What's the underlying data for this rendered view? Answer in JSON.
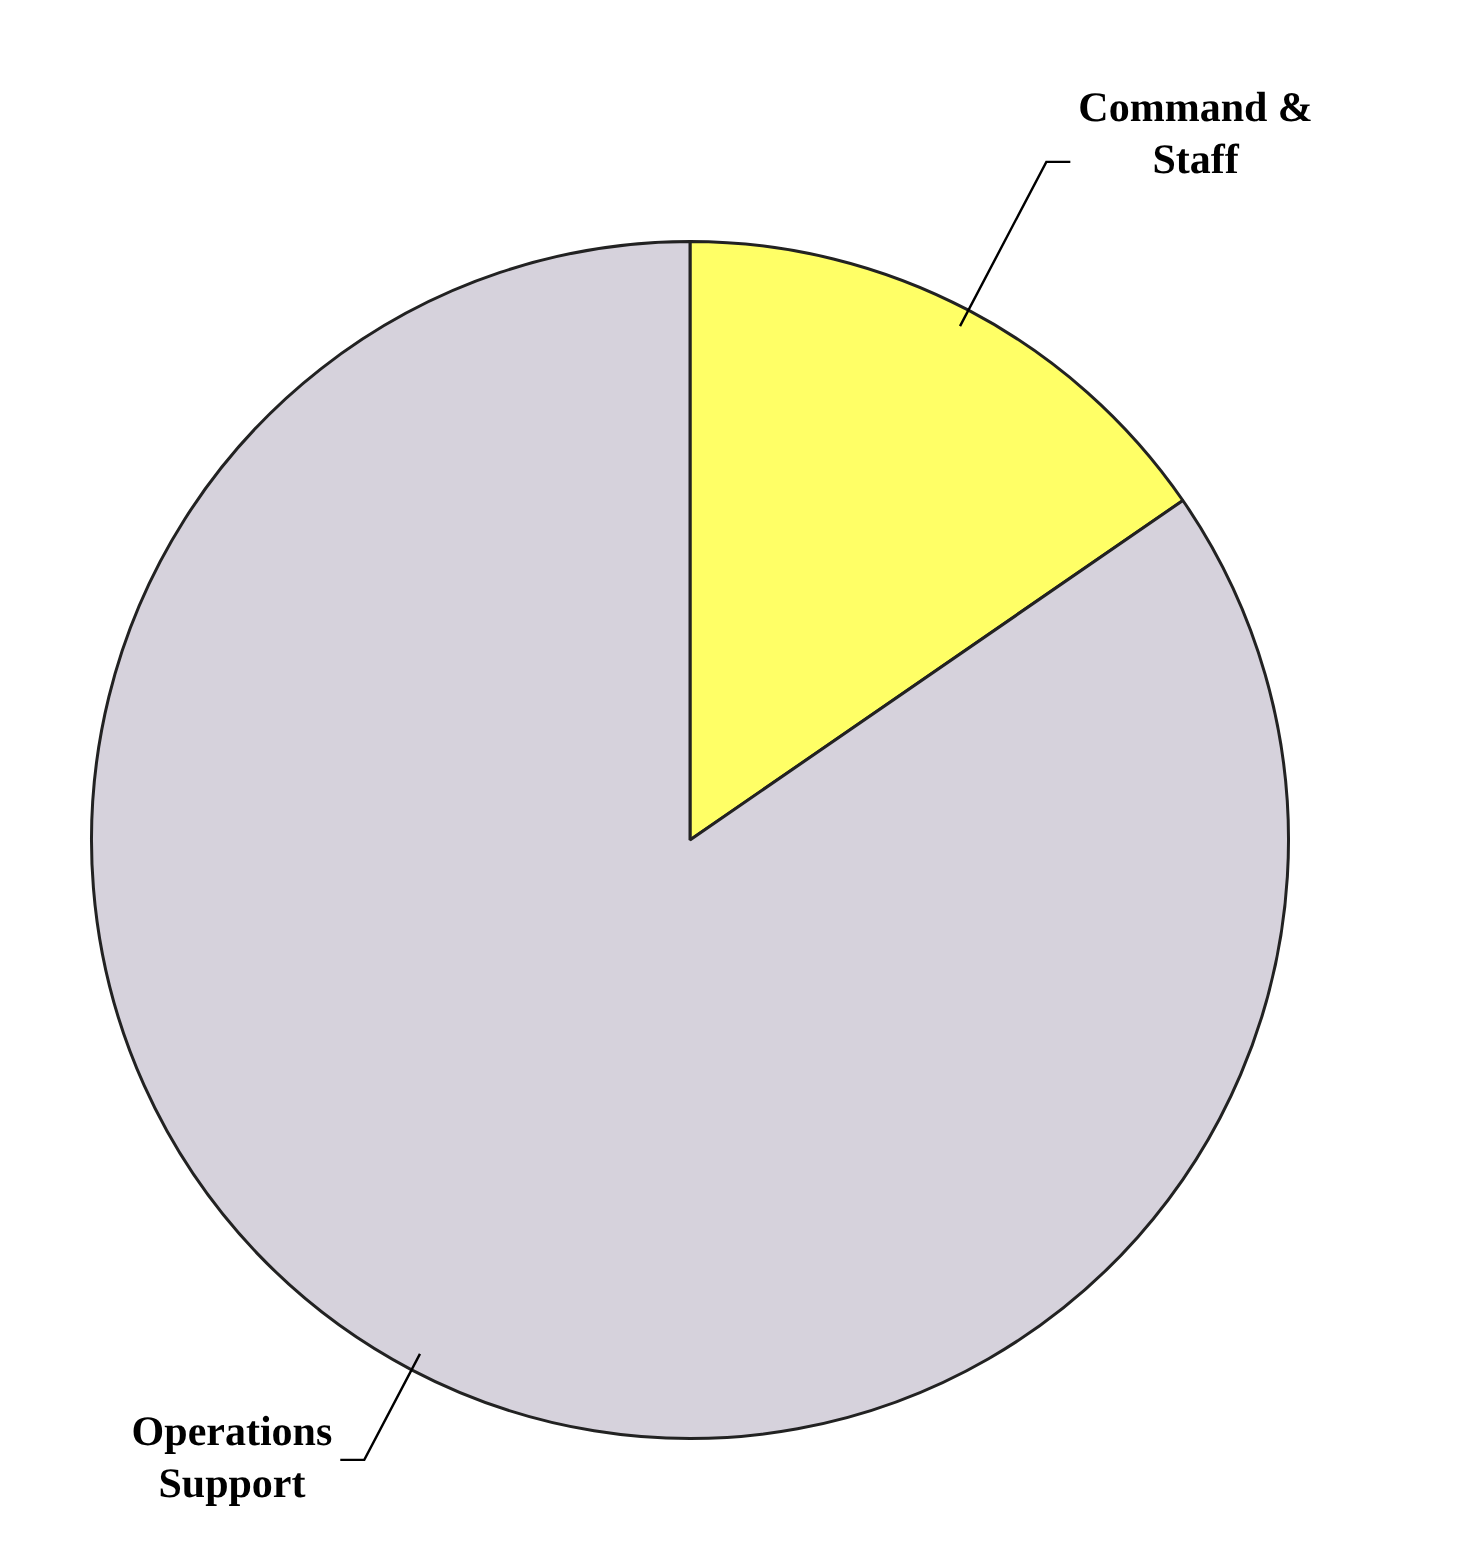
{
  "chart_data": {
    "type": "pie",
    "categories": [
      "Command & Staff",
      "Operations Support"
    ],
    "values": [
      15.4,
      84.6
    ],
    "colors": [
      "#ffff66",
      "#d6d2dc"
    ],
    "legend": false
  }
}
